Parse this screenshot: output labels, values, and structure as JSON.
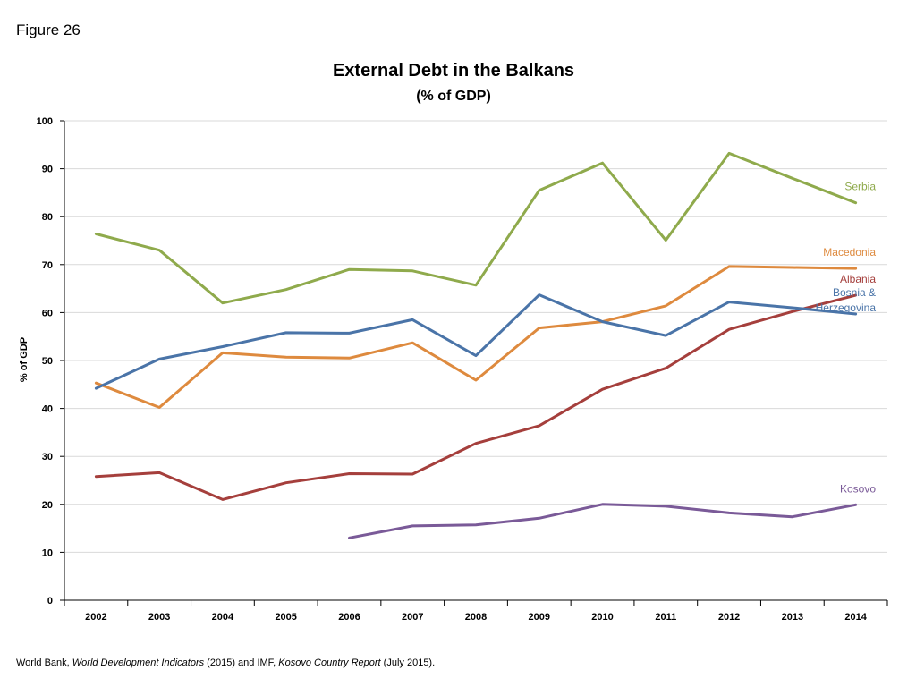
{
  "figure_label": "Figure 26",
  "source": {
    "part1": "World Bank, ",
    "part2": "World Development Indicators",
    "part3": " (2015) and IMF, ",
    "part4": "Kosovo Country Report",
    "part5": " (July 2015)."
  },
  "chart_data": {
    "type": "line",
    "title": "External Debt in the Balkans",
    "subtitle": "(% of GDP)",
    "xlabel": "",
    "ylabel": "% of GDP",
    "ylim": [
      0,
      100
    ],
    "yticks": [
      0,
      10,
      20,
      30,
      40,
      50,
      60,
      70,
      80,
      90,
      100
    ],
    "grid": true,
    "legend": "inline labels at line ends",
    "x": [
      "2002",
      "2003",
      "2004",
      "2005",
      "2006",
      "2007",
      "2008",
      "2009",
      "2010",
      "2011",
      "2012",
      "2013",
      "2014"
    ],
    "series": [
      {
        "name": "Serbia",
        "color": "#8faa4c",
        "values": [
          76.4,
          73.0,
          62.0,
          64.8,
          69.0,
          68.7,
          65.7,
          85.5,
          91.2,
          75.1,
          93.2,
          88.0,
          82.9
        ]
      },
      {
        "name": "Macedonia",
        "color": "#de8a3e",
        "values": [
          45.3,
          40.2,
          51.6,
          50.7,
          50.5,
          53.7,
          45.9,
          56.8,
          58.1,
          61.4,
          69.6,
          69.4,
          69.2
        ]
      },
      {
        "name": "Albania",
        "color": "#a53f3c",
        "values": [
          25.8,
          26.6,
          21.0,
          24.5,
          26.4,
          26.3,
          32.7,
          36.4,
          44.0,
          48.4,
          56.5,
          60.2,
          63.6
        ]
      },
      {
        "name": "Bosnia & Herzegovina",
        "color": "#4a74a8",
        "values": [
          44.2,
          50.3,
          52.9,
          55.8,
          55.7,
          58.5,
          51.0,
          63.7,
          58.1,
          55.2,
          62.2,
          61.0,
          59.7
        ]
      },
      {
        "name": "Kosovo",
        "color": "#7a5a98",
        "values": [
          null,
          null,
          null,
          null,
          13.0,
          15.5,
          15.7,
          17.1,
          20.0,
          19.6,
          18.2,
          17.4,
          19.9
        ]
      }
    ],
    "labels": [
      {
        "series": "Serbia",
        "lines": [
          "Serbia"
        ]
      },
      {
        "series": "Macedonia",
        "lines": [
          "Macedonia"
        ]
      },
      {
        "series": "Albania",
        "lines": [
          "Albania"
        ]
      },
      {
        "series": "Bosnia & Herzegovina",
        "lines": [
          "Bosnia &",
          "Herzegovina"
        ]
      },
      {
        "series": "Kosovo",
        "lines": [
          "Kosovo"
        ]
      }
    ]
  }
}
